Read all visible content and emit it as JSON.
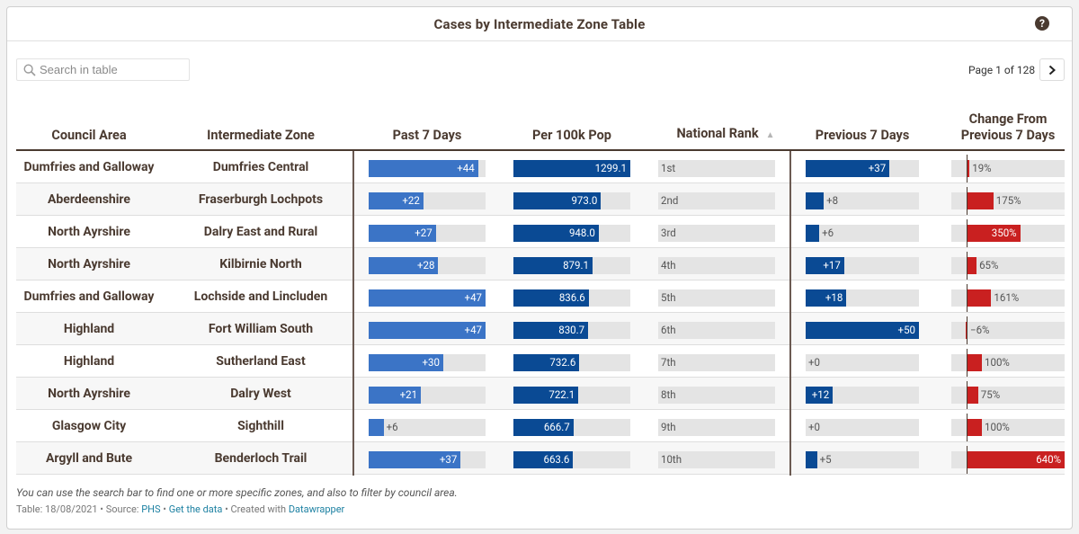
{
  "title": "Cases by Intermediate Zone Table",
  "help_icon": "question-circle-icon",
  "search": {
    "placeholder": "Search in table"
  },
  "pager": {
    "label": "Page 1 of 128",
    "next_icon": "chevron-right-icon"
  },
  "columns": {
    "council": "Council Area",
    "zone": "Intermediate Zone",
    "past7": "Past 7 Days",
    "per100k": "Per 100k Pop",
    "rank": "National Rank",
    "prev7": "Previous 7 Days",
    "change_line1": "Change From",
    "change_line2": "Previous 7 Days"
  },
  "scales": {
    "past7_max": 47,
    "per100k_max": 1299.1,
    "prev7_max": 50,
    "change_max": 640
  },
  "colors": {
    "past7": "#3b74c6",
    "per100k": "#0a4a94",
    "prev7": "#0a4a94",
    "change": "#c92020",
    "track": "#e4e4e4"
  },
  "rows": [
    {
      "council": "Dumfries and Galloway",
      "zone": "Dumfries Central",
      "past7": 44,
      "past7_label": "+44",
      "per100k": 1299.1,
      "per100k_label": "1299.1",
      "rank": "1st",
      "prev7": 37,
      "prev7_label": "+37",
      "change": 19,
      "change_label": "19%"
    },
    {
      "council": "Aberdeenshire",
      "zone": "Fraserburgh Lochpots",
      "past7": 22,
      "past7_label": "+22",
      "per100k": 973.0,
      "per100k_label": "973.0",
      "rank": "2nd",
      "prev7": 8,
      "prev7_label": "+8",
      "change": 175,
      "change_label": "175%"
    },
    {
      "council": "North Ayrshire",
      "zone": "Dalry East and Rural",
      "past7": 27,
      "past7_label": "+27",
      "per100k": 948.0,
      "per100k_label": "948.0",
      "rank": "3rd",
      "prev7": 6,
      "prev7_label": "+6",
      "change": 350,
      "change_label": "350%"
    },
    {
      "council": "North Ayrshire",
      "zone": "Kilbirnie North",
      "past7": 28,
      "past7_label": "+28",
      "per100k": 879.1,
      "per100k_label": "879.1",
      "rank": "4th",
      "prev7": 17,
      "prev7_label": "+17",
      "change": 65,
      "change_label": "65%"
    },
    {
      "council": "Dumfries and Galloway",
      "zone": "Lochside and Lincluden",
      "past7": 47,
      "past7_label": "+47",
      "per100k": 836.6,
      "per100k_label": "836.6",
      "rank": "5th",
      "prev7": 18,
      "prev7_label": "+18",
      "change": 161,
      "change_label": "161%"
    },
    {
      "council": "Highland",
      "zone": "Fort William South",
      "past7": 47,
      "past7_label": "+47",
      "per100k": 830.7,
      "per100k_label": "830.7",
      "rank": "6th",
      "prev7": 50,
      "prev7_label": "+50",
      "change": -6,
      "change_label": "−6%"
    },
    {
      "council": "Highland",
      "zone": "Sutherland East",
      "past7": 30,
      "past7_label": "+30",
      "per100k": 732.6,
      "per100k_label": "732.6",
      "rank": "7th",
      "prev7": 0,
      "prev7_label": "+0",
      "change": 100,
      "change_label": "100%"
    },
    {
      "council": "North Ayrshire",
      "zone": "Dalry West",
      "past7": 21,
      "past7_label": "+21",
      "per100k": 722.1,
      "per100k_label": "722.1",
      "rank": "8th",
      "prev7": 12,
      "prev7_label": "+12",
      "change": 75,
      "change_label": "75%"
    },
    {
      "council": "Glasgow City",
      "zone": "Sighthill",
      "past7": 6,
      "past7_label": "+6",
      "per100k": 666.7,
      "per100k_label": "666.7",
      "rank": "9th",
      "prev7": 0,
      "prev7_label": "+0",
      "change": 100,
      "change_label": "100%"
    },
    {
      "council": "Argyll and Bute",
      "zone": "Benderloch Trail",
      "past7": 37,
      "past7_label": "+37",
      "per100k": 663.6,
      "per100k_label": "663.6",
      "rank": "10th",
      "prev7": 5,
      "prev7_label": "+5",
      "change": 640,
      "change_label": "640%"
    }
  ],
  "note": "You can use the search bar to find one or more specific zones, and also to filter by council area.",
  "footer": {
    "prefix": "Table: 18/08/2021 • Source: ",
    "source_link": "PHS",
    "sep1": " • ",
    "data_link": "Get the data",
    "sep2": " • Created with ",
    "dw_link": "Datawrapper"
  }
}
